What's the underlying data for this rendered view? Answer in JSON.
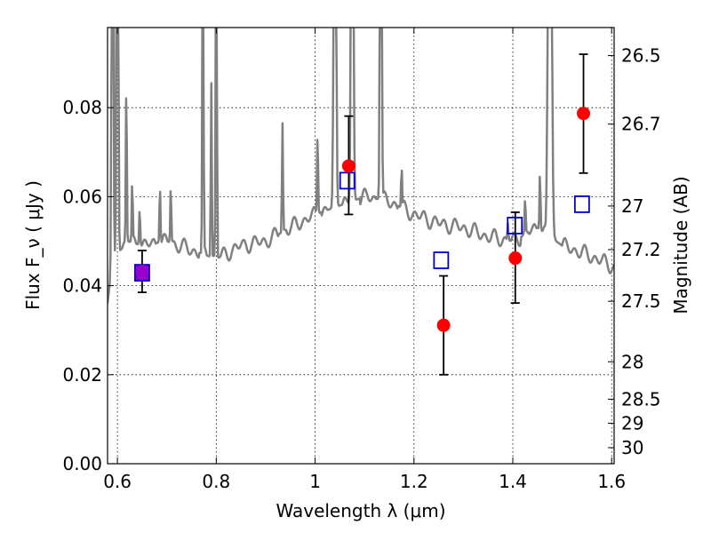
{
  "chart_data": {
    "type": "scatter",
    "xlabel": "Wavelength  λ (μm)",
    "ylabel_left": "Flux  F_ν  ( μJy )",
    "ylabel_right": "Magnitude (AB)",
    "xlim": [
      0.58,
      1.605
    ],
    "ylim": [
      0.0,
      0.098
    ],
    "x_ticks": [
      0.6,
      0.8,
      1.0,
      1.2,
      1.4,
      1.6
    ],
    "x_tick_labels": [
      "0.6",
      "0.8",
      "1",
      "1.2",
      "1.4",
      "1.6"
    ],
    "y_ticks": [
      0.0,
      0.02,
      0.04,
      0.06,
      0.08
    ],
    "y_tick_labels": [
      "0.00",
      "0.02",
      "0.04",
      "0.06",
      "0.08"
    ],
    "right_ticks": [
      {
        "label": "26.5",
        "flux": 0.0917
      },
      {
        "label": "26.7",
        "flux": 0.0763
      },
      {
        "label": "27",
        "flux": 0.0579
      },
      {
        "label": "27.2",
        "flux": 0.0481
      },
      {
        "label": "27.5",
        "flux": 0.0365
      },
      {
        "label": "28",
        "flux": 0.0229
      },
      {
        "label": "28.5",
        "flux": 0.0145
      },
      {
        "label": "29",
        "flux": 0.0091
      },
      {
        "label": "30",
        "flux": 0.0036
      }
    ],
    "grid": true,
    "colors": {
      "spectrum": "#808080",
      "observed": "#ff0000",
      "model": "#0000cc",
      "overlap": "#9900cc",
      "errorbar": "#000000"
    },
    "observed_points": [
      {
        "x": 0.65,
        "y": 0.0432,
        "ylow": 0.0385,
        "yhigh": 0.0479
      },
      {
        "x": 1.068,
        "y": 0.0669,
        "ylow": 0.056,
        "yhigh": 0.0781
      },
      {
        "x": 1.26,
        "y": 0.0311,
        "ylow": 0.02,
        "yhigh": 0.0422
      },
      {
        "x": 1.405,
        "y": 0.0462,
        "ylow": 0.0361,
        "yhigh": 0.0565
      },
      {
        "x": 1.543,
        "y": 0.0787,
        "ylow": 0.0653,
        "yhigh": 0.092
      }
    ],
    "model_points": [
      {
        "x": 0.65,
        "y": 0.0429
      },
      {
        "x": 1.065,
        "y": 0.0636
      },
      {
        "x": 1.255,
        "y": 0.0457
      },
      {
        "x": 1.404,
        "y": 0.0535
      },
      {
        "x": 1.54,
        "y": 0.0583
      }
    ],
    "spectrum_anchors": [
      [
        0.58,
        0.036
      ],
      [
        0.585,
        0.041
      ],
      [
        0.59,
        0.046
      ],
      [
        0.6,
        0.047
      ],
      [
        0.62,
        0.05
      ],
      [
        0.65,
        0.049
      ],
      [
        0.7,
        0.05
      ],
      [
        0.75,
        0.048
      ],
      [
        0.8,
        0.046
      ],
      [
        0.85,
        0.049
      ],
      [
        0.9,
        0.05
      ],
      [
        0.95,
        0.053
      ],
      [
        1.0,
        0.056
      ],
      [
        1.05,
        0.058
      ],
      [
        1.1,
        0.06
      ],
      [
        1.15,
        0.059
      ],
      [
        1.2,
        0.056
      ],
      [
        1.25,
        0.054
      ],
      [
        1.3,
        0.053
      ],
      [
        1.35,
        0.051
      ],
      [
        1.4,
        0.05
      ],
      [
        1.45,
        0.053
      ],
      [
        1.5,
        0.049
      ],
      [
        1.55,
        0.047
      ],
      [
        1.6,
        0.0445
      ],
      [
        1.605,
        0.0443
      ]
    ],
    "emission_lines": [
      {
        "x": 0.59,
        "peak": 0.2,
        "w": 0.003
      },
      {
        "x": 0.6,
        "peak": 0.2,
        "w": 0.003
      },
      {
        "x": 0.618,
        "peak": 0.0865,
        "w": 0.002
      },
      {
        "x": 0.63,
        "peak": 0.064,
        "w": 0.002
      },
      {
        "x": 0.645,
        "peak": 0.0575,
        "w": 0.002
      },
      {
        "x": 0.686,
        "peak": 0.0626,
        "w": 0.002
      },
      {
        "x": 0.708,
        "peak": 0.0627,
        "w": 0.002
      },
      {
        "x": 0.773,
        "peak": 0.2,
        "w": 0.002
      },
      {
        "x": 0.79,
        "peak": 0.0855,
        "w": 0.002
      },
      {
        "x": 0.8,
        "peak": 0.2,
        "w": 0.002
      },
      {
        "x": 0.934,
        "peak": 0.0765,
        "w": 0.002
      },
      {
        "x": 1.005,
        "peak": 0.075,
        "w": 0.002
      },
      {
        "x": 1.04,
        "peak": 0.2,
        "w": 0.004
      },
      {
        "x": 1.075,
        "peak": 0.2,
        "w": 0.004
      },
      {
        "x": 1.133,
        "peak": 0.2,
        "w": 0.003
      },
      {
        "x": 1.175,
        "peak": 0.067,
        "w": 0.002
      },
      {
        "x": 1.39,
        "peak": 0.054,
        "w": 0.002
      },
      {
        "x": 1.425,
        "peak": 0.06,
        "w": 0.002
      },
      {
        "x": 1.455,
        "peak": 0.066,
        "w": 0.002
      },
      {
        "x": 1.475,
        "peak": 0.2,
        "w": 0.006
      }
    ]
  }
}
